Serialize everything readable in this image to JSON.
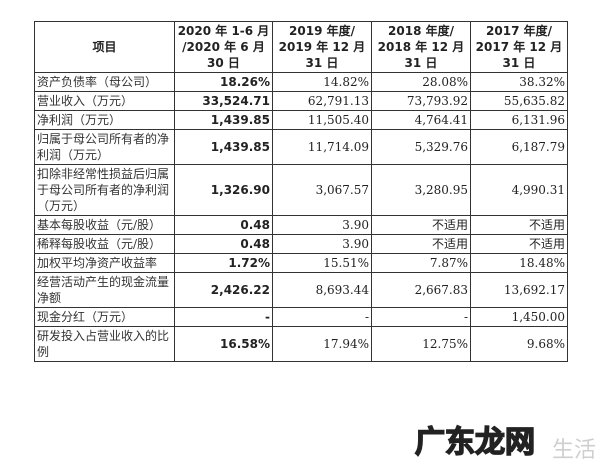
{
  "headers": [
    "项目",
    "2020 年 1-6 月 /2020 年 6 月 30 日",
    "2019 年度/ 2019 年 12 月 31 日",
    "2018 年度/ 2018 年 12 月 31 日",
    "2017 年度/ 2017 年 12 月 31 日"
  ],
  "rows": [
    {
      "label": "资产负债率（母公司）",
      "values": [
        "18.26%",
        "14.82%",
        "28.08%",
        "38.32%"
      ]
    },
    {
      "label": "营业收入（万元）",
      "values": [
        "33,524.71",
        "62,791.13",
        "73,793.92",
        "55,635.82"
      ]
    },
    {
      "label": "净利润（万元）",
      "values": [
        "1,439.85",
        "11,505.40",
        "4,764.41",
        "6,131.96"
      ]
    },
    {
      "label": "归属于母公司所有者的净利润（万元）",
      "values": [
        "1,439.85",
        "11,714.09",
        "5,329.76",
        "6,187.79"
      ]
    },
    {
      "label": "扣除非经常性损益后归属于母公司所有者的净利润（万元）",
      "values": [
        "1,326.90",
        "3,067.57",
        "3,280.95",
        "4,990.31"
      ]
    },
    {
      "label": "基本每股收益（元/股）",
      "values": [
        "0.48",
        "3.90",
        "不适用",
        "不适用"
      ]
    },
    {
      "label": "稀释每股收益（元/股）",
      "values": [
        "0.48",
        "3.90",
        "不适用",
        "不适用"
      ]
    },
    {
      "label": "加权平均净资产收益率",
      "values": [
        "1.72%",
        "15.51%",
        "7.87%",
        "18.48%"
      ]
    },
    {
      "label": "经营活动产生的现金流量净额",
      "values": [
        "2,426.22",
        "8,693.44",
        "2,667.83",
        "13,692.17"
      ]
    },
    {
      "label": "现金分红（万元）",
      "values": [
        "-",
        "-",
        "-",
        "1,450.00"
      ]
    },
    {
      "label": "研发投入占营业收入的比例",
      "values": [
        "16.58%",
        "17.94%",
        "12.75%",
        "9.68%"
      ]
    }
  ],
  "watermark": {
    "main": "广东龙网",
    "sub": "生活"
  }
}
